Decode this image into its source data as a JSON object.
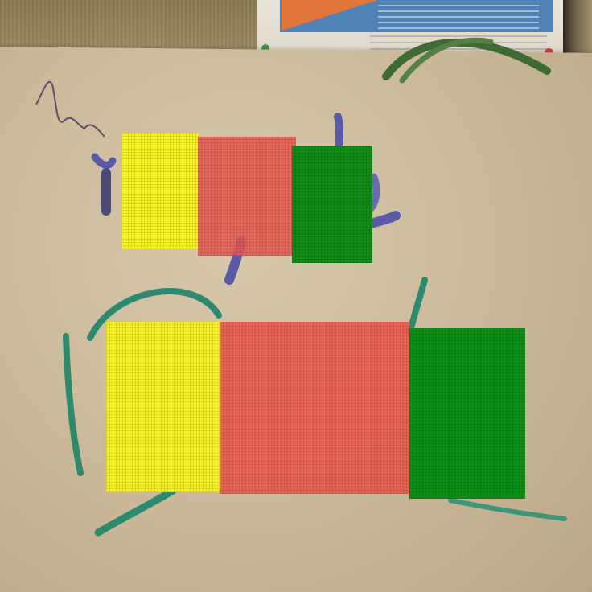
{
  "scene": {
    "description_kind": "photo",
    "colors": {
      "board": "#c9b798",
      "yellow_mask": "#f6f22a",
      "red_mask": "#e7584e",
      "green_mask": "#0f8d18",
      "purple_ink": "#5a4fa0",
      "teal_ink": "#2e8a6e"
    }
  }
}
